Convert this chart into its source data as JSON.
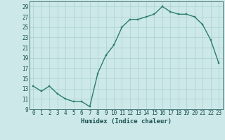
{
  "x": [
    0,
    1,
    2,
    3,
    4,
    5,
    6,
    7,
    8,
    9,
    10,
    11,
    12,
    13,
    14,
    15,
    16,
    17,
    18,
    19,
    20,
    21,
    22,
    23
  ],
  "y": [
    13.5,
    12.5,
    13.5,
    12.0,
    11.0,
    10.5,
    10.5,
    9.5,
    16.0,
    19.5,
    21.5,
    25.0,
    26.5,
    26.5,
    27.0,
    27.5,
    29.0,
    28.0,
    27.5,
    27.5,
    27.0,
    25.5,
    22.5,
    18.0
  ],
  "xlabel": "Humidex (Indice chaleur)",
  "line_color": "#2d7d6e",
  "marker_color": "#2d7d6e",
  "bg_color": "#cce8e8",
  "grid_color": "#aad0d0",
  "text_color": "#1a5050",
  "ylim": [
    9,
    30
  ],
  "xlim": [
    -0.5,
    23.5
  ],
  "yticks": [
    9,
    11,
    13,
    15,
    17,
    19,
    21,
    23,
    25,
    27,
    29
  ],
  "xticks": [
    0,
    1,
    2,
    3,
    4,
    5,
    6,
    7,
    8,
    9,
    10,
    11,
    12,
    13,
    14,
    15,
    16,
    17,
    18,
    19,
    20,
    21,
    22,
    23
  ],
  "xtick_labels": [
    "0",
    "1",
    "2",
    "3",
    "4",
    "5",
    "6",
    "7",
    "8",
    "9",
    "10",
    "11",
    "12",
    "13",
    "14",
    "15",
    "16",
    "17",
    "18",
    "19",
    "20",
    "21",
    "22",
    "23"
  ],
  "xlabel_fontsize": 6.5,
  "tick_fontsize": 5.5,
  "linewidth": 1.0,
  "markersize": 2.0
}
